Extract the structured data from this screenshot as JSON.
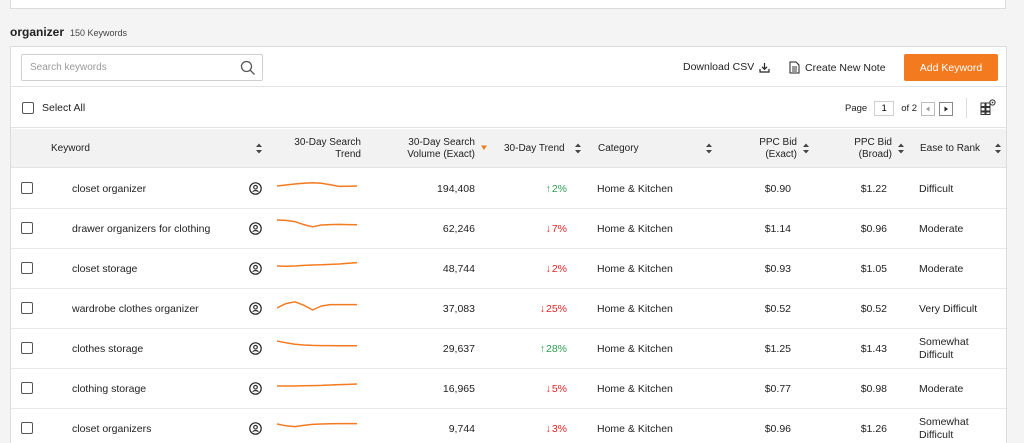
{
  "header": {
    "keyword": "organizer",
    "count_label": "150 Keywords"
  },
  "toolbar": {
    "search_placeholder": "Search keywords",
    "download_label": "Download CSV",
    "note_label": "Create New Note",
    "add_label": "Add Keyword",
    "accent_color": "#f47a20"
  },
  "selection": {
    "select_all_label": "Select All"
  },
  "pagination": {
    "page_label": "Page",
    "current_page": "1",
    "of_label": "of 2"
  },
  "columns": {
    "keyword": "Keyword",
    "trend_30": [
      "30-Day Search",
      "Trend"
    ],
    "volume": [
      "30-Day Search",
      "Volume (Exact)"
    ],
    "trend_pct": "30-Day Trend",
    "category": "Category",
    "ppc_exact": [
      "PPC Bid",
      "(Exact)"
    ],
    "ppc_broad": [
      "PPC Bid",
      "(Broad)"
    ],
    "ease": "Ease to Rank"
  },
  "rows": [
    {
      "keyword": "closet organizer",
      "volume": "194,408",
      "trend": "2%",
      "direction": "up",
      "category": "Home & Kitchen",
      "ppc_exact": "$0.90",
      "ppc_broad": "$1.22",
      "ease": "Difficult",
      "spark": [
        6,
        5.5,
        5,
        4.6,
        4.4,
        4.6,
        5.4,
        6.2,
        6.1,
        6
      ]
    },
    {
      "keyword": "drawer organizers for clothing",
      "volume": "62,246",
      "trend": "7%",
      "direction": "down",
      "category": "Home & Kitchen",
      "ppc_exact": "$1.14",
      "ppc_broad": "$0.96",
      "ease": "Moderate",
      "spark": [
        3,
        3.2,
        3.8,
        5.3,
        6.4,
        5.5,
        5.3,
        5.2,
        5.3,
        5.4
      ]
    },
    {
      "keyword": "closet storage",
      "volume": "48,744",
      "trend": "2%",
      "direction": "down",
      "category": "Home & Kitchen",
      "ppc_exact": "$0.93",
      "ppc_broad": "$1.05",
      "ease": "Moderate",
      "spark": [
        6,
        6.1,
        6,
        5.7,
        5.5,
        5.4,
        5.2,
        5,
        4.6,
        4.3
      ]
    },
    {
      "keyword": "wardrobe clothes organizer",
      "volume": "37,083",
      "trend": "25%",
      "direction": "down",
      "category": "Home & Kitchen",
      "ppc_exact": "$0.52",
      "ppc_broad": "$0.52",
      "ease": "Very Difficult",
      "spark": [
        7,
        4.8,
        3.9,
        5.6,
        8,
        6,
        5.3,
        5.3,
        5.3,
        5.3
      ]
    },
    {
      "keyword": "clothes storage",
      "volume": "29,637",
      "trend": "28%",
      "direction": "up",
      "category": "Home & Kitchen",
      "ppc_exact": "$1.25",
      "ppc_broad": "$1.43",
      "ease": "Somewhat Difficult",
      "spark": [
        3.5,
        4.4,
        5.1,
        5.5,
        5.7,
        5.8,
        5.8,
        5.9,
        5.9,
        5.9
      ]
    },
    {
      "keyword": "clothing storage",
      "volume": "16,965",
      "trend": "5%",
      "direction": "down",
      "category": "Home & Kitchen",
      "ppc_exact": "$0.77",
      "ppc_broad": "$0.98",
      "ease": "Moderate",
      "spark": [
        6,
        6,
        6,
        5.9,
        5.8,
        5.7,
        5.5,
        5.3,
        5.2,
        5
      ]
    },
    {
      "keyword": "closet organizers",
      "volume": "9,744",
      "trend": "3%",
      "direction": "down",
      "category": "Home & Kitchen",
      "ppc_exact": "$0.96",
      "ppc_broad": "$1.26",
      "ease": "Somewhat Difficult",
      "spark": [
        5,
        5.9,
        6.3,
        5.7,
        5.2,
        5,
        4.9,
        4.8,
        4.8,
        4.8
      ]
    }
  ]
}
